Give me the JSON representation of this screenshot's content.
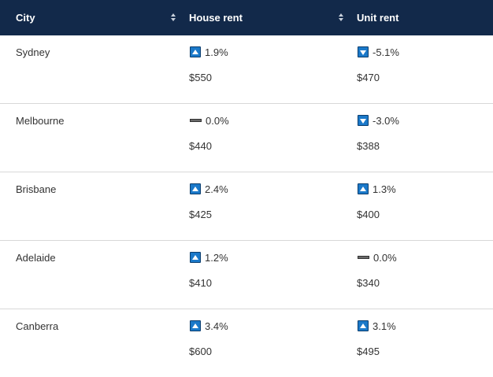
{
  "columns": {
    "city": "City",
    "house": "House rent",
    "unit": "Unit rent"
  },
  "rows": [
    {
      "city": "Sydney",
      "house_change": "1.9%",
      "house_dir": "up",
      "house_price": "$550",
      "unit_change": "-5.1%",
      "unit_dir": "down",
      "unit_price": "$470"
    },
    {
      "city": "Melbourne",
      "house_change": "0.0%",
      "house_dir": "flat",
      "house_price": "$440",
      "unit_change": "-3.0%",
      "unit_dir": "down",
      "unit_price": "$388"
    },
    {
      "city": "Brisbane",
      "house_change": "2.4%",
      "house_dir": "up",
      "house_price": "$425",
      "unit_change": "1.3%",
      "unit_dir": "up",
      "unit_price": "$400"
    },
    {
      "city": "Adelaide",
      "house_change": "1.2%",
      "house_dir": "up",
      "house_price": "$410",
      "unit_change": "0.0%",
      "unit_dir": "flat",
      "unit_price": "$340"
    },
    {
      "city": "Canberra",
      "house_change": "3.4%",
      "house_dir": "up",
      "house_price": "$600",
      "unit_change": "3.1%",
      "unit_dir": "up",
      "unit_price": "$495"
    }
  ]
}
